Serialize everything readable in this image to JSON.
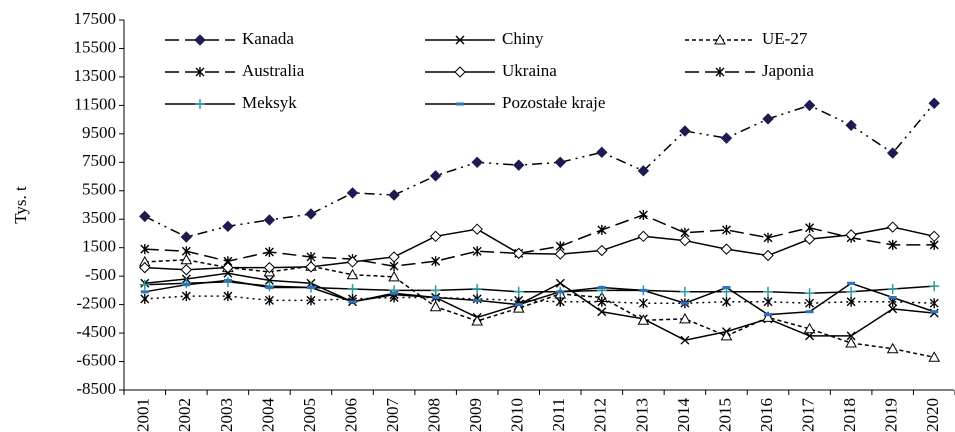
{
  "chart_data": {
    "type": "line",
    "ylabel": "Tys. t",
    "categories": [
      "2001",
      "2002",
      "2003",
      "2004",
      "2005",
      "2006",
      "2007",
      "2008",
      "2009",
      "2010",
      "2011",
      "2012",
      "2013",
      "2014",
      "2015",
      "2016",
      "2017",
      "2018",
      "2019",
      "2020"
    ],
    "series": [
      {
        "name": "Kanada",
        "color": "#000000",
        "values": [
          3700,
          2250,
          3000,
          3450,
          3870,
          5350,
          5200,
          6550,
          7500,
          7300,
          7500,
          8200,
          6900,
          9700,
          9200,
          10550,
          11500,
          10100,
          8150,
          11650
        ]
      },
      {
        "name": "Chiny",
        "color": "#000000",
        "values": [
          -1000,
          -700,
          -300,
          -800,
          -1000,
          -2300,
          -1800,
          -2000,
          -3400,
          -2500,
          -1000,
          -3000,
          -3500,
          -5000,
          -4400,
          -3500,
          -4700,
          -4700,
          -2800,
          -3100
        ]
      },
      {
        "name": "UE-27",
        "color": "#000000",
        "values": [
          500,
          650,
          100,
          -200,
          200,
          -400,
          -550,
          -2650,
          -3650,
          -2750,
          -1750,
          -2000,
          -3600,
          -3500,
          -4700,
          -3400,
          -4200,
          -5200,
          -5600,
          -6200
        ]
      },
      {
        "name": "Australia",
        "color": "#000000",
        "values": [
          1400,
          1250,
          550,
          1200,
          850,
          700,
          200,
          550,
          1250,
          1100,
          1600,
          2750,
          3800,
          2550,
          2750,
          2200,
          2900,
          2200,
          1700,
          1700
        ]
      },
      {
        "name": "Ukraina",
        "color": "#000000",
        "values": [
          100,
          -50,
          100,
          100,
          150,
          500,
          850,
          2300,
          2800,
          1100,
          1050,
          1300,
          2300,
          2000,
          1400,
          950,
          2100,
          2400,
          2950,
          2300
        ]
      },
      {
        "name": "Japonia",
        "color": "#000000",
        "values": [
          -2100,
          -1900,
          -1900,
          -2200,
          -2200,
          -2100,
          -2000,
          -2000,
          -2100,
          -2200,
          -2300,
          -2300,
          -2400,
          -2400,
          -2300,
          -2300,
          -2400,
          -2300,
          -2300,
          -2400
        ]
      },
      {
        "name": "Meksyk",
        "color": "#000000",
        "values": [
          -1100,
          -1000,
          -900,
          -1200,
          -1300,
          -1400,
          -1500,
          -1500,
          -1400,
          -1600,
          -1600,
          -1500,
          -1500,
          -1600,
          -1600,
          -1600,
          -1700,
          -1600,
          -1400,
          -1200
        ]
      },
      {
        "name": "Pozostałe kraje",
        "color": "#000000",
        "values": [
          -1600,
          -1100,
          -800,
          -1300,
          -1300,
          -2300,
          -1700,
          -2000,
          -2200,
          -2500,
          -1600,
          -1300,
          -1500,
          -2400,
          -1300,
          -3200,
          -3000,
          -1000,
          -2000,
          -3000
        ]
      }
    ],
    "ylim": [
      -8500,
      17500
    ],
    "yticks": [
      -8500,
      -6500,
      -4500,
      -2500,
      -500,
      1500,
      3500,
      5500,
      7500,
      9500,
      11500,
      13500,
      15500,
      17500
    ]
  }
}
